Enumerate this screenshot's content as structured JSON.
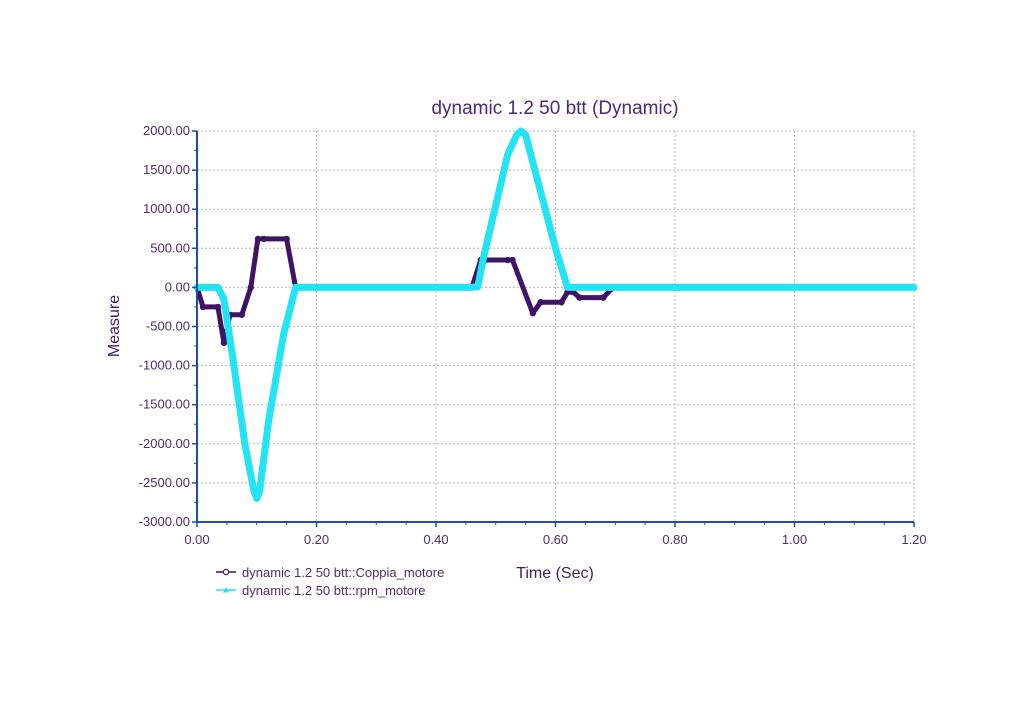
{
  "chart_data": {
    "type": "line",
    "title": "dynamic 1.2 50 btt (Dynamic)",
    "xlabel": "Time (Sec)",
    "ylabel": "Measure",
    "xlim": [
      0,
      1.2
    ],
    "ylim": [
      -3000,
      2000
    ],
    "x_ticks": [
      "0.00",
      "0.20",
      "0.40",
      "0.60",
      "0.80",
      "1.00",
      "1.20"
    ],
    "y_ticks": [
      "2000.00",
      "1500.00",
      "1000.00",
      "500.00",
      "0.00",
      "-500.00",
      "-1000.00",
      "-1500.00",
      "-2000.00",
      "-2500.00",
      "-3000.00"
    ],
    "grid": true,
    "legend_position": "bottom-left",
    "series": [
      {
        "name": "dynamic 1.2 50 btt::Coppia_motore",
        "color": "#3d1466",
        "marker": "circle",
        "x": [
          0.0,
          0.01,
          0.035,
          0.045,
          0.055,
          0.075,
          0.09,
          0.102,
          0.112,
          0.15,
          0.165,
          0.17,
          0.46,
          0.475,
          0.52,
          0.528,
          0.562,
          0.575,
          0.61,
          0.62,
          0.63,
          0.64,
          0.68,
          0.695,
          0.7
        ],
        "y": [
          0,
          -250,
          -250,
          -710,
          -350,
          -350,
          0,
          620,
          620,
          620,
          0,
          0,
          0,
          350,
          350,
          350,
          -330,
          -190,
          -190,
          -60,
          -60,
          -130,
          -130,
          -10,
          0
        ]
      },
      {
        "name": "dynamic 1.2 50 btt::rpm_motore",
        "color": "#22e4f4",
        "marker": "triangle",
        "x": [
          0.0,
          0.035,
          0.045,
          0.06,
          0.08,
          0.095,
          0.1,
          0.105,
          0.12,
          0.145,
          0.165,
          0.17,
          0.46,
          0.47,
          0.48,
          0.52,
          0.535,
          0.542,
          0.55,
          0.6,
          0.62,
          0.63,
          1.2
        ],
        "y": [
          0,
          0,
          -150,
          -900,
          -2000,
          -2600,
          -2700,
          -2600,
          -1700,
          -600,
          0,
          0,
          0,
          10,
          400,
          1700,
          1950,
          2000,
          1950,
          500,
          0,
          0,
          0
        ]
      }
    ]
  }
}
